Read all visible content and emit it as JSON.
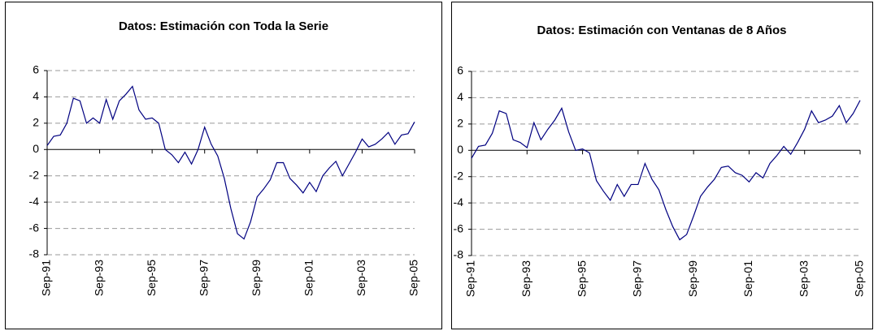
{
  "chart_data": [
    {
      "type": "line",
      "title": "Datos: Estimación con Toda la Serie",
      "categories": [
        "Sep-91",
        null,
        null,
        null,
        null,
        null,
        null,
        null,
        "Sep-93",
        null,
        null,
        null,
        null,
        null,
        null,
        null,
        "Sep-95",
        null,
        null,
        null,
        null,
        null,
        null,
        null,
        "Sep-97",
        null,
        null,
        null,
        null,
        null,
        null,
        null,
        "Sep-99",
        null,
        null,
        null,
        null,
        null,
        null,
        null,
        "Sep-01",
        null,
        null,
        null,
        null,
        null,
        null,
        null,
        "Sep-03",
        null,
        null,
        null,
        null,
        null,
        null,
        null,
        "Sep-05"
      ],
      "series": [
        {
          "color": "#000080",
          "values": [
            0.3,
            1.0,
            1.1,
            2.0,
            3.9,
            3.7,
            2.0,
            2.4,
            2.0,
            3.8,
            2.3,
            3.7,
            4.2,
            4.8,
            3.0,
            2.3,
            2.4,
            2.0,
            0.0,
            -0.4,
            -1.0,
            -0.2,
            -1.1,
            0.0,
            1.7,
            0.4,
            -0.5,
            -2.2,
            -4.5,
            -6.4,
            -6.8,
            -5.5,
            -3.6,
            -3.0,
            -2.3,
            -1.0,
            -1.0,
            -2.2,
            -2.7,
            -3.3,
            -2.5,
            -3.2,
            -2.0,
            -1.4,
            -0.9,
            -2.0,
            -1.1,
            -0.2,
            0.8,
            0.2,
            0.4,
            0.8,
            1.3,
            0.4,
            1.1,
            1.2,
            2.1
          ]
        }
      ],
      "ylim": [
        -8,
        6
      ],
      "yticks": [
        -8,
        -6,
        -4,
        -2,
        0,
        2,
        4,
        6
      ],
      "grid": true
    },
    {
      "type": "line",
      "title": "Datos: Estimación con Ventanas de 8 Años",
      "categories": [
        "Sep-91",
        null,
        null,
        null,
        null,
        null,
        null,
        null,
        "Sep-93",
        null,
        null,
        null,
        null,
        null,
        null,
        null,
        "Sep-95",
        null,
        null,
        null,
        null,
        null,
        null,
        null,
        "Sep-97",
        null,
        null,
        null,
        null,
        null,
        null,
        null,
        "Sep-99",
        null,
        null,
        null,
        null,
        null,
        null,
        null,
        "Sep-01",
        null,
        null,
        null,
        null,
        null,
        null,
        null,
        "Sep-03",
        null,
        null,
        null,
        null,
        null,
        null,
        null,
        "Sep-05"
      ],
      "series": [
        {
          "color": "#000080",
          "values": [
            -0.6,
            0.3,
            0.4,
            1.3,
            3.0,
            2.8,
            0.8,
            0.6,
            0.2,
            2.1,
            0.8,
            1.6,
            2.3,
            3.2,
            1.4,
            0.0,
            0.1,
            -0.2,
            -2.3,
            -3.1,
            -3.8,
            -2.6,
            -3.5,
            -2.6,
            -2.6,
            -1.0,
            -2.2,
            -3.0,
            -4.5,
            -5.8,
            -6.8,
            -6.4,
            -5.0,
            -3.5,
            -2.8,
            -2.2,
            -1.3,
            -1.2,
            -1.7,
            -1.9,
            -2.4,
            -1.7,
            -2.1,
            -1.0,
            -0.4,
            0.3,
            -0.3,
            0.6,
            1.6,
            3.0,
            2.1,
            2.3,
            2.6,
            3.4,
            2.1,
            2.8,
            3.8
          ]
        }
      ],
      "ylim": [
        -8,
        6
      ],
      "yticks": [
        -8,
        -6,
        -4,
        -2,
        0,
        2,
        4,
        6
      ],
      "grid": true
    }
  ]
}
